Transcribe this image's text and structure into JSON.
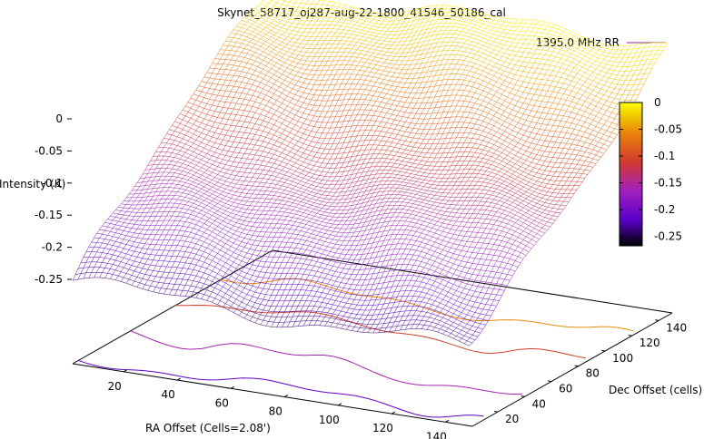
{
  "chart_data": {
    "type": "surface",
    "title": "Skynet_58717_oj287-aug-22-1800_41546_50186_cal",
    "legend": {
      "label": "1395.0 MHz RR",
      "line_color": "#8b2f8b",
      "placement": "top-right"
    },
    "xlabel": "RA Offset (Cells=2.08')",
    "ylabel": "Dec Offset (cells)",
    "zlabel": "Intensity (K)",
    "x_ticks": [
      20,
      40,
      60,
      80,
      100,
      120,
      140
    ],
    "y_ticks": [
      20,
      40,
      60,
      80,
      100,
      120,
      140
    ],
    "z_ticks": [
      "0",
      "-0.05",
      "-0.1",
      "-0.15",
      "-0.2",
      "-0.25"
    ],
    "xlim": [
      1,
      150
    ],
    "ylim": [
      1,
      150
    ],
    "zlim": [
      -0.3,
      0
    ],
    "colorbar": {
      "ticks": [
        "0",
        "-0.05",
        "-0.1",
        "-0.15",
        "-0.2",
        "-0.25"
      ],
      "range": [
        -0.25,
        0
      ],
      "palette": [
        "#000000",
        "#5a00c8",
        "#a020c0",
        "#d03a30",
        "#e8800a",
        "#f0d000",
        "#ffff00"
      ]
    },
    "surface_model": {
      "description": "intensity rises linearly from low Dec to high Dec",
      "z_at_dec_min": -0.21,
      "z_at_dec_max": -0.01,
      "ripple_amplitude": 0.008
    },
    "contour_levels": [
      -0.2,
      -0.15,
      -0.1,
      -0.05
    ]
  }
}
